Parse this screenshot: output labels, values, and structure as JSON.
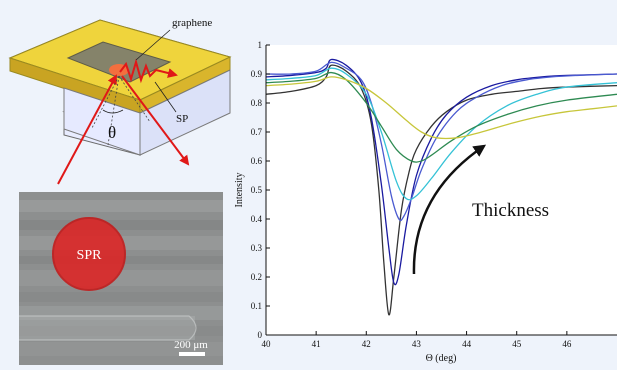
{
  "schematic": {
    "graphene_label": "graphene",
    "sp_label": "SP",
    "angle_label": "θ"
  },
  "micrograph": {
    "spot_label": "SPR",
    "scalebar_label": "200 μm"
  },
  "chart_data": {
    "type": "line",
    "title": "",
    "xlabel": "Θ (deg)",
    "ylabel": "Intensity",
    "xlim": [
      40,
      47
    ],
    "ylim": [
      0,
      1
    ],
    "xticks": [
      40,
      41,
      42,
      43,
      44,
      45,
      46
    ],
    "yticks": [
      0,
      0.1,
      0.2,
      0.3,
      0.4,
      0.5,
      0.6,
      0.7,
      0.8,
      0.9,
      1
    ],
    "grid": false,
    "annotation": "Thickness",
    "series": [
      {
        "color": "#333333",
        "x": [
          40,
          40.5,
          41,
          41.2,
          41.3,
          41.6,
          41.9,
          42.1,
          42.25,
          42.35,
          42.45,
          42.55,
          42.7,
          42.85,
          43.0,
          43.3,
          43.6,
          44.0,
          44.5,
          45.0,
          45.5,
          46.0,
          47.0
        ],
        "y": [
          0.83,
          0.84,
          0.86,
          0.89,
          0.93,
          0.91,
          0.85,
          0.73,
          0.5,
          0.25,
          0.07,
          0.2,
          0.43,
          0.56,
          0.64,
          0.72,
          0.77,
          0.81,
          0.83,
          0.84,
          0.85,
          0.855,
          0.86
        ]
      },
      {
        "color": "#1a1aa0",
        "x": [
          40,
          40.5,
          41,
          41.2,
          41.3,
          41.6,
          41.9,
          42.1,
          42.3,
          42.45,
          42.55,
          42.65,
          42.8,
          43.0,
          43.3,
          43.6,
          44.0,
          44.5,
          45.0,
          45.5,
          46.0,
          47.0
        ],
        "y": [
          0.89,
          0.895,
          0.905,
          0.92,
          0.95,
          0.93,
          0.87,
          0.75,
          0.52,
          0.3,
          0.18,
          0.21,
          0.38,
          0.55,
          0.68,
          0.76,
          0.82,
          0.86,
          0.88,
          0.89,
          0.895,
          0.9
        ]
      },
      {
        "color": "#4a5ad0",
        "x": [
          40,
          40.5,
          41,
          41.3,
          41.6,
          41.9,
          42.1,
          42.3,
          42.5,
          42.65,
          42.75,
          42.9,
          43.1,
          43.4,
          43.8,
          44.2,
          44.7,
          45.2,
          45.7,
          46.2,
          47.0
        ],
        "y": [
          0.9,
          0.9,
          0.91,
          0.94,
          0.92,
          0.88,
          0.8,
          0.66,
          0.48,
          0.4,
          0.41,
          0.47,
          0.57,
          0.68,
          0.77,
          0.82,
          0.86,
          0.88,
          0.89,
          0.895,
          0.9
        ]
      },
      {
        "color": "#35c2d6",
        "x": [
          40,
          40.5,
          41,
          41.3,
          41.6,
          42.0,
          42.3,
          42.6,
          42.8,
          43.0,
          43.3,
          43.7,
          44.2,
          44.8,
          45.4,
          46.0,
          47.0
        ],
        "y": [
          0.88,
          0.885,
          0.895,
          0.92,
          0.9,
          0.83,
          0.7,
          0.53,
          0.47,
          0.48,
          0.54,
          0.63,
          0.72,
          0.79,
          0.83,
          0.855,
          0.87
        ]
      },
      {
        "color": "#2e8a52",
        "x": [
          40,
          40.5,
          41,
          41.3,
          41.6,
          42.0,
          42.3,
          42.6,
          42.9,
          43.1,
          43.3,
          43.7,
          44.2,
          44.8,
          45.4,
          46.0,
          47.0
        ],
        "y": [
          0.87,
          0.875,
          0.885,
          0.905,
          0.88,
          0.8,
          0.72,
          0.64,
          0.6,
          0.6,
          0.62,
          0.67,
          0.72,
          0.76,
          0.79,
          0.81,
          0.83
        ]
      },
      {
        "color": "#c7c63a",
        "x": [
          40,
          40.5,
          41,
          41.3,
          41.6,
          42.0,
          42.4,
          42.8,
          43.1,
          43.4,
          43.8,
          44.3,
          44.9,
          45.5,
          46.0,
          46.5,
          47.0
        ],
        "y": [
          0.86,
          0.865,
          0.875,
          0.89,
          0.88,
          0.85,
          0.8,
          0.74,
          0.7,
          0.68,
          0.68,
          0.7,
          0.73,
          0.755,
          0.77,
          0.78,
          0.79
        ]
      }
    ]
  }
}
